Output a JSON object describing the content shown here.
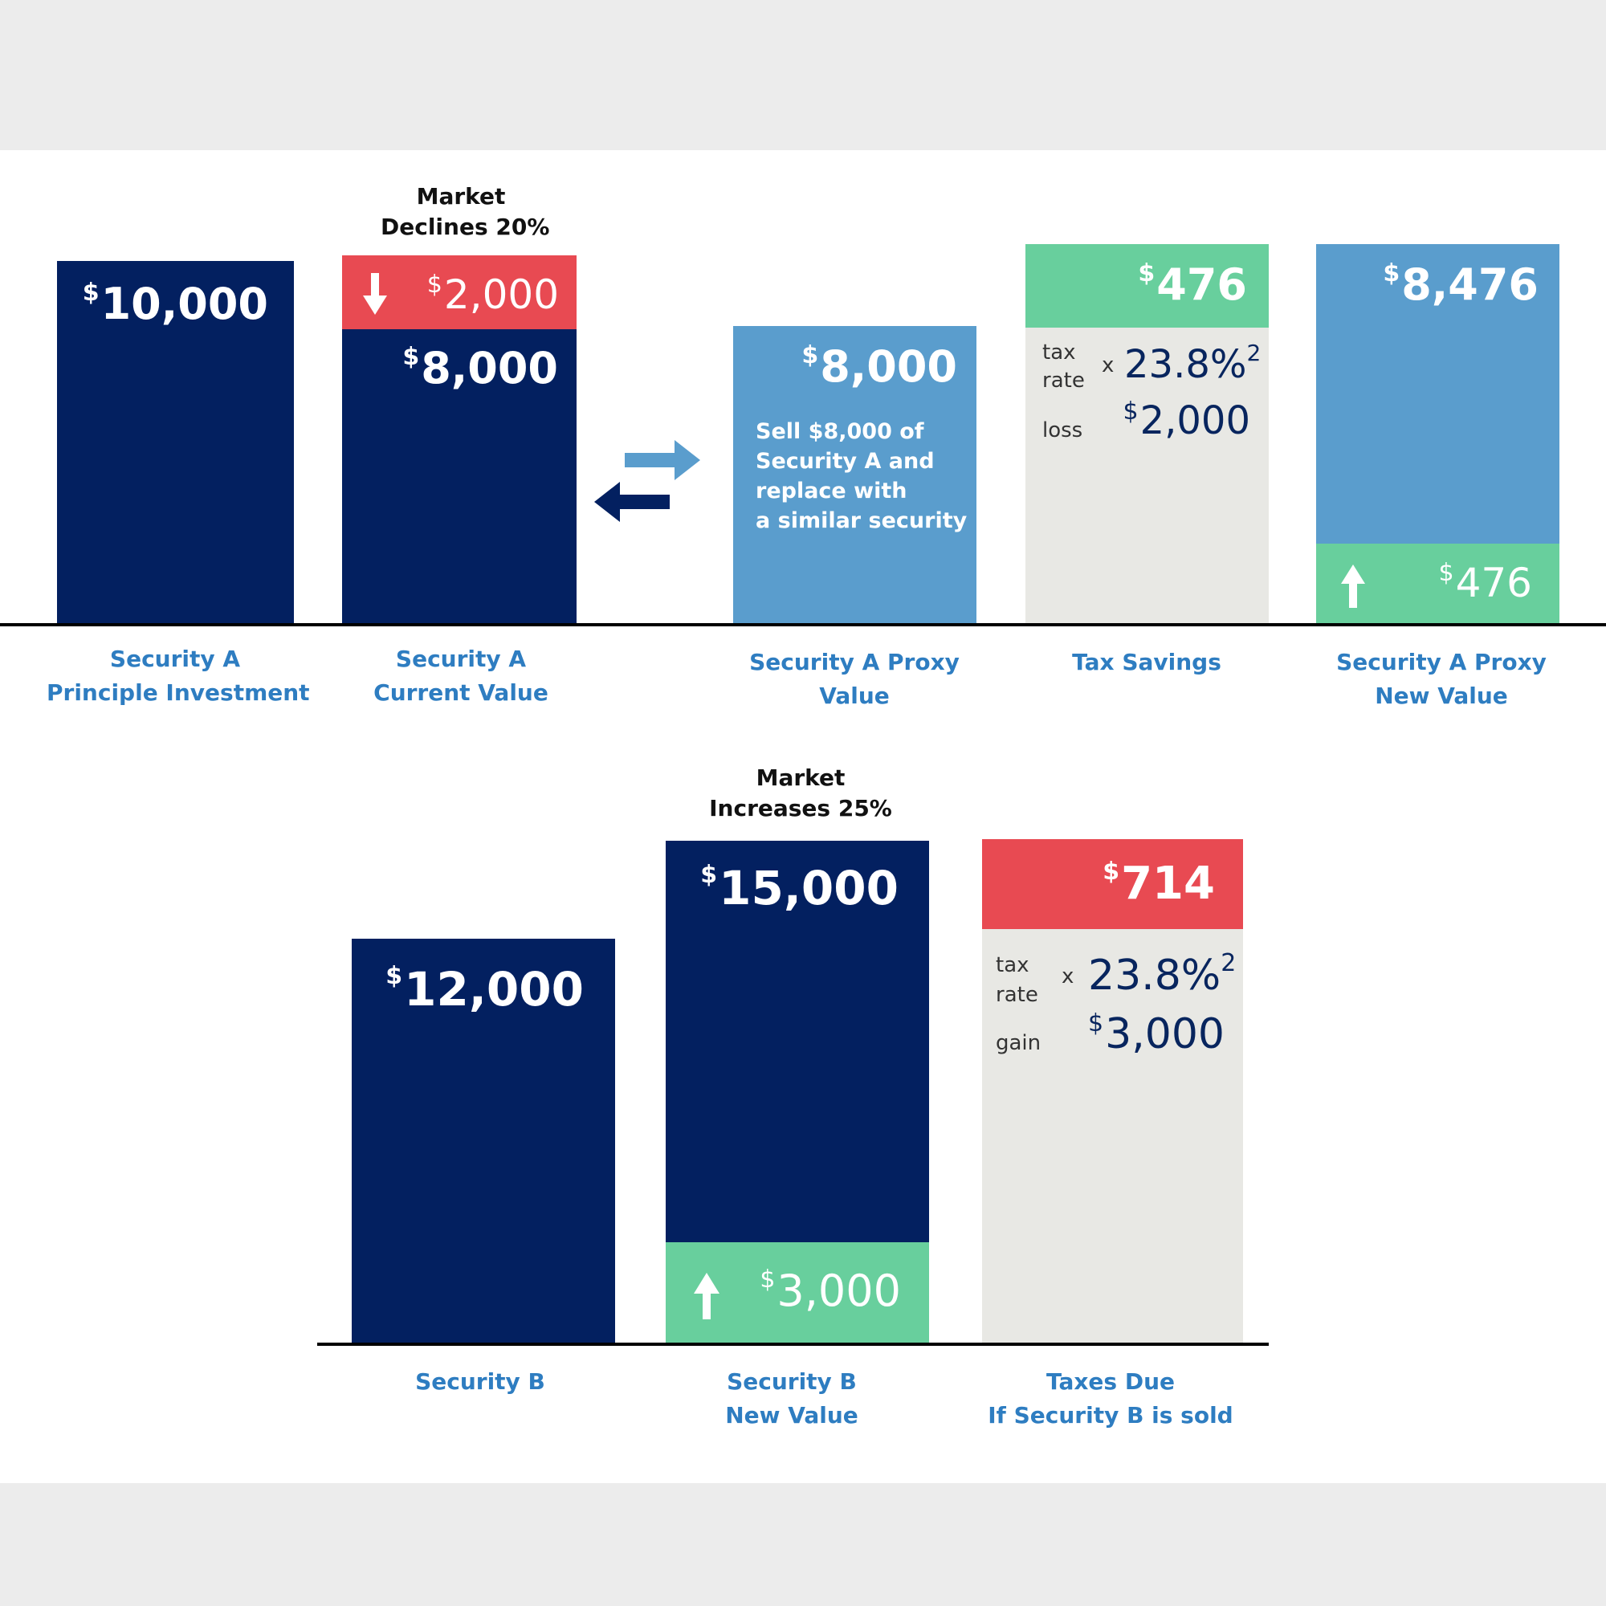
{
  "top": {
    "annotation": [
      "Market",
      "Declines 20%"
    ],
    "bars": {
      "principal": {
        "value": "10,000",
        "label": [
          "Security A",
          "Principle Investment"
        ]
      },
      "current": {
        "decline": "2,000",
        "value": "8,000",
        "label": [
          "Security A",
          "Current Value"
        ]
      },
      "proxy": {
        "value": "8,000",
        "description": [
          "Sell $8,000 of",
          "Security A and",
          "replace with",
          "a similar security"
        ],
        "label": [
          "Security A Proxy",
          "Value"
        ]
      },
      "tax_savings": {
        "value": "476",
        "tax_label": "tax",
        "rate_label": "rate",
        "rate": "23.8%",
        "footnote": "2",
        "times": "x",
        "loss_label": "loss",
        "loss": "2,000",
        "label": [
          "Tax Savings"
        ]
      },
      "proxy_new": {
        "value": "8,476",
        "gain": "476",
        "label": [
          "Security A Proxy",
          "New Value"
        ]
      }
    }
  },
  "bottom": {
    "annotation": [
      "Market",
      "Increases 25%"
    ],
    "bars": {
      "security_b": {
        "value": "12,000",
        "label": [
          "Security B"
        ]
      },
      "security_b_new": {
        "value": "15,000",
        "gain": "3,000",
        "label": [
          "Security B",
          "New Value"
        ]
      },
      "taxes_due": {
        "value": "714",
        "tax_label": "tax",
        "rate_label": "rate",
        "rate": "23.8%",
        "footnote": "2",
        "times": "x",
        "gain_label": "gain",
        "gain": "3,000",
        "label": [
          "Taxes Due",
          "If Security B is sold"
        ]
      }
    }
  },
  "currency_symbol": "$",
  "colors": {
    "navy": "#032060",
    "red": "#e84a52",
    "green": "#68cf9d",
    "light_blue": "#5a9dcd",
    "gray": "#e8e8e4",
    "label_blue": "#2e7dc1"
  }
}
